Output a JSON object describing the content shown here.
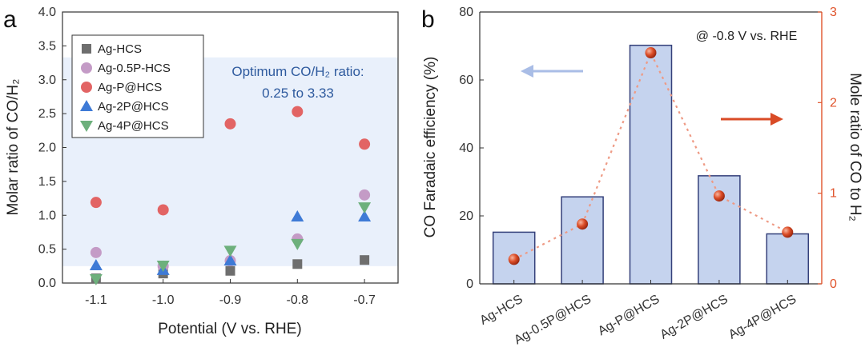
{
  "chart_data": [
    {
      "panel": "a",
      "type": "scatter",
      "xlabel": "Potential (V vs. RHE)",
      "ylabel": "Molar ratio of CO/H₂",
      "xlim": [
        -1.15,
        -0.65
      ],
      "ylim": [
        0,
        4.0
      ],
      "xticks": [
        "-1.1",
        "-1.0",
        "-0.9",
        "-0.8",
        "-0.7"
      ],
      "yticks": [
        "0.0",
        "0.5",
        "1.0",
        "1.5",
        "2.0",
        "2.5",
        "3.0",
        "3.5",
        "4.0"
      ],
      "x": [
        -1.1,
        -1.0,
        -0.9,
        -0.8,
        -0.7
      ],
      "band": [
        0.25,
        3.33
      ],
      "annotation": [
        "Optimum CO/H₂ ratio:",
        "0.25 to 3.33"
      ],
      "series": [
        {
          "name": "Ag-HCS",
          "marker": "square",
          "color": "#6e6e6e",
          "values": [
            0.07,
            0.14,
            0.18,
            0.28,
            0.34
          ]
        },
        {
          "name": "Ag-0.5P-HCS",
          "marker": "circle",
          "color": "#c49bc6",
          "values": [
            0.45,
            0.25,
            0.33,
            0.65,
            1.3
          ]
        },
        {
          "name": "Ag-P@HCS",
          "marker": "circle",
          "color": "#e26464",
          "values": [
            1.19,
            1.08,
            2.35,
            2.53,
            2.05
          ]
        },
        {
          "name": "Ag-2P@HCS",
          "marker": "triangle-up",
          "color": "#3e7ad6",
          "values": [
            0.26,
            0.19,
            0.33,
            0.98,
            0.98
          ]
        },
        {
          "name": "Ag-4P@HCS",
          "marker": "triangle-down",
          "color": "#6db07c",
          "values": [
            0.06,
            0.26,
            0.48,
            0.58,
            1.12
          ]
        }
      ]
    },
    {
      "panel": "b",
      "type": "bar",
      "categories": [
        "Ag-HCS",
        "Ag-0.5P@HCS",
        "Ag-P@HCS",
        "Ag-2P@HCS",
        "Ag-4P@HCS"
      ],
      "ylabel": "CO Faradaic efficiency (%)",
      "ylim": [
        0,
        80
      ],
      "yticks": [
        "0",
        "20",
        "40",
        "60",
        "80"
      ],
      "values": [
        15.2,
        25.6,
        70.2,
        31.8,
        14.7
      ],
      "y2label": "Mole ratio of CO to H₂",
      "y2lim": [
        0,
        3
      ],
      "y2ticks": [
        "0",
        "1",
        "2",
        "3"
      ],
      "ratio_values": [
        0.27,
        0.66,
        2.55,
        0.97,
        0.57
      ],
      "annotation": "@ -0.8 V vs. RHE",
      "bar_color": "#c5d3ee",
      "bar_edge": "#34407a",
      "ratio_color": "#e0542c"
    }
  ]
}
